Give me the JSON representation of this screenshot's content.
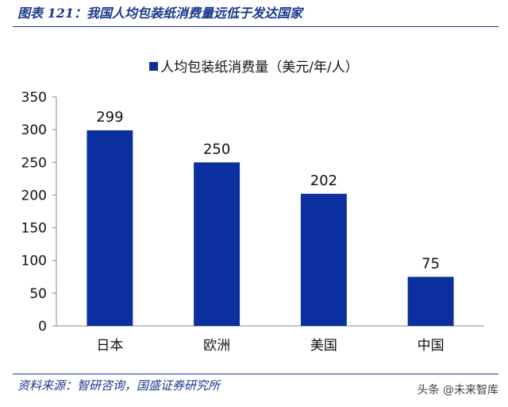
{
  "figure_title": "图表 121：我国人均包装纸消费量远低于发达国家",
  "source_text": "资料来源：智研咨询，国盛证券研究所",
  "watermark": "头条 @未来智库",
  "colors": {
    "bar": "#0b2f9e",
    "accent": "#1a3a8c"
  },
  "chart_data": {
    "type": "bar",
    "title": "",
    "xlabel": "",
    "ylabel": "",
    "categories": [
      "日本",
      "欧洲",
      "美国",
      "中国"
    ],
    "series": [
      {
        "name": "人均包装纸消费量（美元/年/人）",
        "values": [
          299,
          250,
          202,
          75
        ]
      }
    ],
    "ylim": [
      0,
      350
    ],
    "yticks": [
      0,
      50,
      100,
      150,
      200,
      250,
      300,
      350
    ],
    "legend": "top-center",
    "grid": false,
    "data_labels": true
  }
}
